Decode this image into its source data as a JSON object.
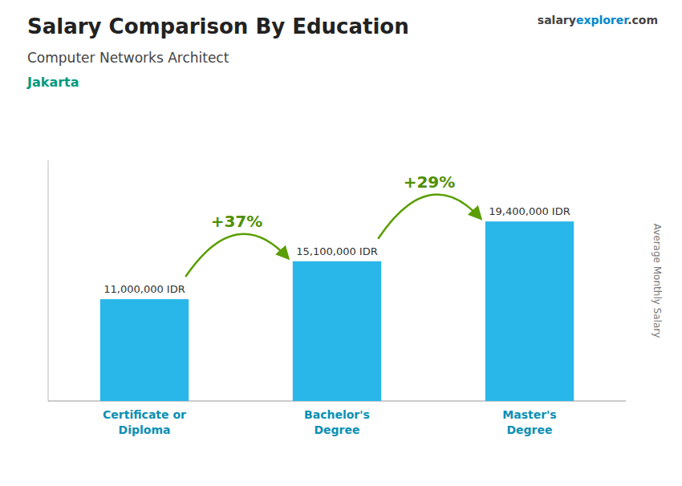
{
  "chart_data": {
    "type": "bar",
    "title": "Salary Comparison By Education",
    "subtitle": "Computer Networks Architect",
    "ylabel": "Average Monthly Salary",
    "annotations": [
      "Jakarta",
      "+37%",
      "+29%",
      "salary",
      "explorer",
      ".com"
    ],
    "categories": [
      "Certificate or\nDiploma",
      "Bachelor's\nDegree",
      "Master's\nDegree"
    ],
    "values": [
      11000000,
      15100000,
      19400000
    ],
    "value_labels": [
      "11,000,000 IDR",
      "15,100,000 IDR",
      "19,400,000 IDR"
    ],
    "color": "#29b6e8",
    "ylim": [
      0,
      26000000
    ],
    "data_labels": true,
    "tick_labels": "x"
  }
}
